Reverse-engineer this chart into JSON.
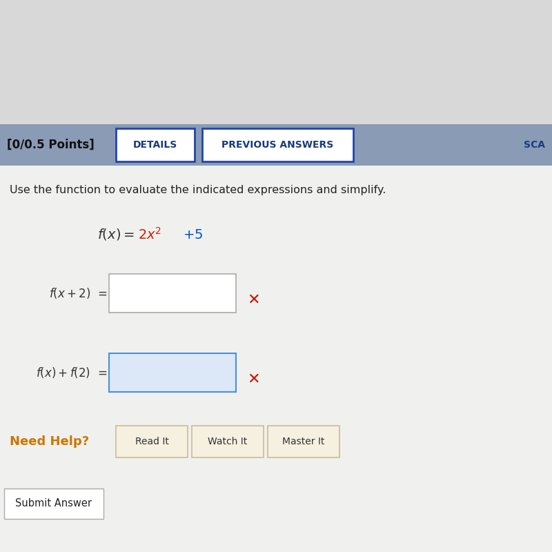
{
  "bg_color": "#d8d8d8",
  "header_bar_color": "#8a9bb5",
  "content_bg": "#f0f0ee",
  "instruction": "Use the function to evaluate the indicated expressions and simplify.",
  "header_text_points": "[0/0.5 Points]",
  "header_btn1": "DETAILS",
  "header_btn2": "PREVIOUS ANSWERS",
  "header_btn3": "SCA",
  "cross_color": "#cc1100",
  "need_help_color": "#cc7700",
  "need_help_text": "Need Help?",
  "btn_read": "Read It",
  "btn_watch": "Watch It",
  "btn_master": "Master It",
  "submit_text": "Submit Answer",
  "fn_black_color": "#333333",
  "fn_red_color": "#cc2200",
  "fn_blue_color": "#0055cc",
  "input_border1": "#aaaaaa",
  "input_border2": "#4a90d9",
  "input_fill1": "#ffffff",
  "input_fill2": "#dce8f8",
  "btn_border": "#2244aa",
  "btn_text": "#1a3a7a",
  "help_btn_fill": "#f5f0e0",
  "help_btn_border": "#ccbb99",
  "submit_fill": "#ffffff",
  "submit_border": "#aaaaaa"
}
